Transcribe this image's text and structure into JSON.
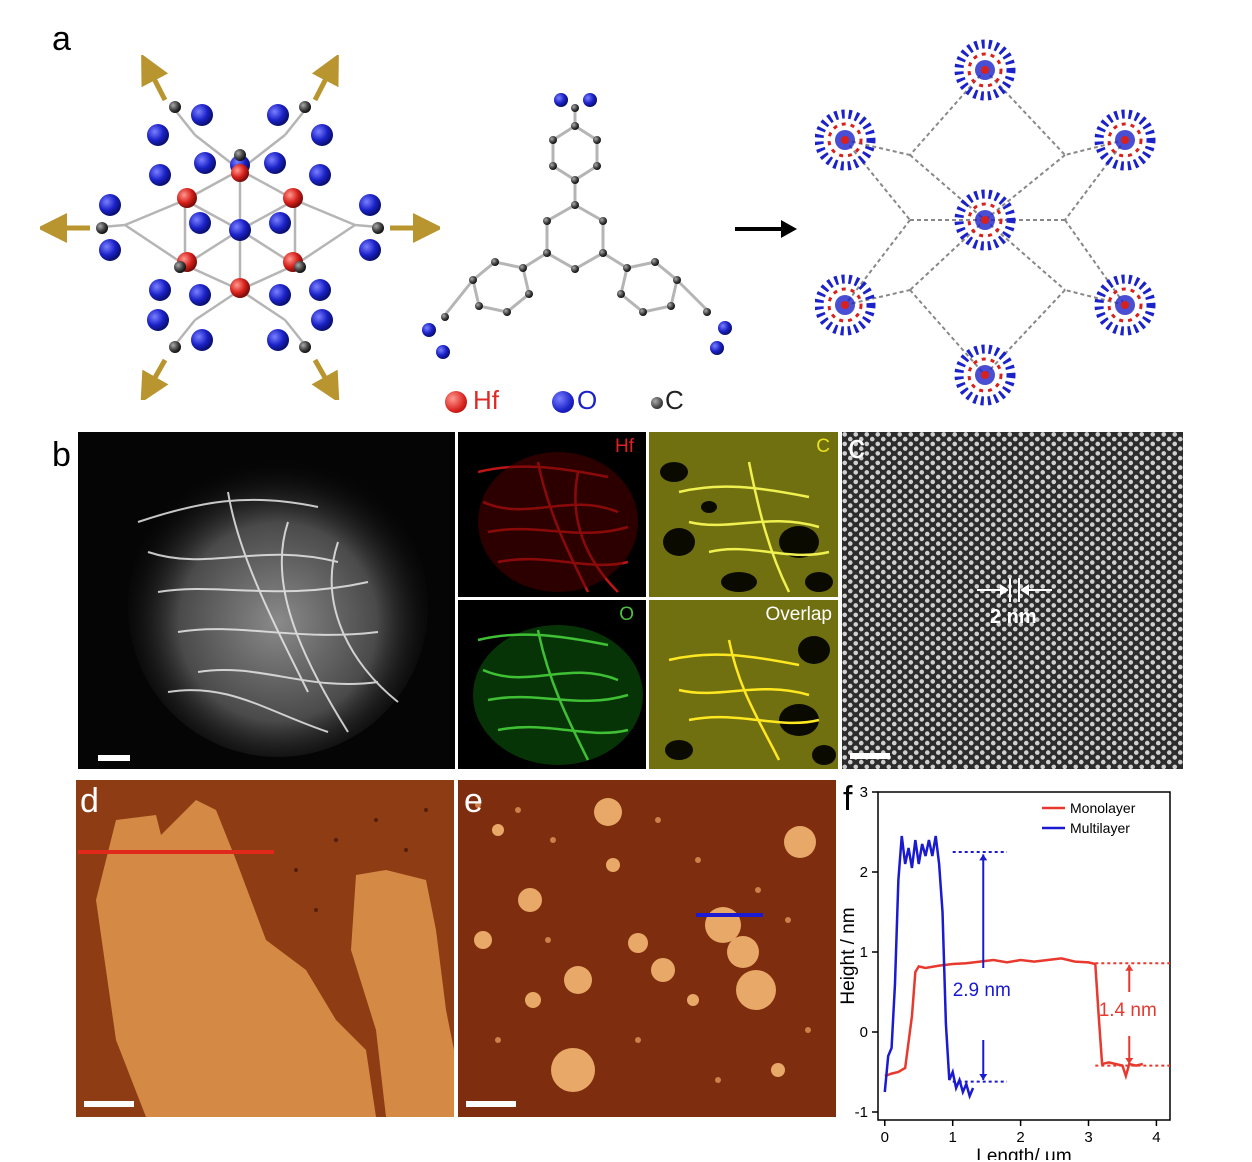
{
  "figure": {
    "panel_labels": {
      "a": "a",
      "b": "b",
      "c": "c",
      "d": "d",
      "e": "e",
      "f": "f"
    },
    "panel_a": {
      "legend": [
        {
          "element": "Hf",
          "color": "#dd2a24"
        },
        {
          "element": "O",
          "color": "#1a22c8"
        },
        {
          "element": "C",
          "color": "#333333"
        }
      ],
      "arrow": "right-arrow"
    },
    "panel_b": {
      "eds_labels": {
        "hf": "Hf",
        "c": "C",
        "o": "O",
        "overlap": "Overlap"
      },
      "eds_colors": {
        "hf": "#e02020",
        "c": "#e8e020",
        "o": "#4cc040",
        "overlap": "#ffffff"
      }
    },
    "panel_c": {
      "spacing_label": "2 nm"
    },
    "panel_f": {
      "chart_data": {
        "type": "line",
        "xlabel": "Length/ μm",
        "ylabel": "Height / nm",
        "xlim": [
          -0.1,
          4.2
        ],
        "ylim": [
          -1.1,
          3.0
        ],
        "xticks": [
          "0",
          "1",
          "2",
          "3",
          "4"
        ],
        "yticks": [
          "-1",
          "0",
          "1",
          "2",
          "3"
        ],
        "legend_position": "top-right",
        "series": [
          {
            "name": "Monolayer",
            "color": "#e8392e",
            "x": [
              0.0,
              0.1,
              0.2,
              0.3,
              0.4,
              0.45,
              0.5,
              0.6,
              0.8,
              1.0,
              1.2,
              1.4,
              1.6,
              1.8,
              2.0,
              2.2,
              2.4,
              2.6,
              2.8,
              3.0,
              3.1,
              3.15,
              3.2,
              3.3,
              3.4,
              3.5,
              3.55,
              3.6,
              3.7,
              3.8
            ],
            "values": [
              -0.55,
              -0.52,
              -0.5,
              -0.45,
              0.2,
              0.75,
              0.82,
              0.8,
              0.83,
              0.85,
              0.86,
              0.88,
              0.9,
              0.87,
              0.9,
              0.88,
              0.9,
              0.92,
              0.88,
              0.87,
              0.85,
              0.2,
              -0.4,
              -0.38,
              -0.4,
              -0.42,
              -0.55,
              -0.4,
              -0.42,
              -0.4
            ]
          },
          {
            "name": "Multilayer",
            "color": "#1a1ad0",
            "x": [
              0.0,
              0.05,
              0.1,
              0.15,
              0.2,
              0.25,
              0.3,
              0.35,
              0.4,
              0.45,
              0.5,
              0.55,
              0.6,
              0.65,
              0.7,
              0.75,
              0.8,
              0.85,
              0.9,
              0.95,
              1.0,
              1.05,
              1.1,
              1.15,
              1.2,
              1.25,
              1.3
            ],
            "values": [
              -0.75,
              -0.3,
              -0.2,
              0.6,
              1.9,
              2.45,
              2.1,
              2.3,
              2.05,
              2.4,
              2.1,
              2.35,
              2.2,
              2.4,
              2.2,
              2.45,
              2.1,
              1.5,
              0.1,
              -0.6,
              -0.5,
              -0.7,
              -0.6,
              -0.75,
              -0.65,
              -0.8,
              -0.7
            ]
          }
        ],
        "annotations": [
          {
            "text": "2.9 nm",
            "color": "#1a1ad0"
          },
          {
            "text": "1.4 nm",
            "color": "#e8392e"
          }
        ]
      }
    }
  }
}
